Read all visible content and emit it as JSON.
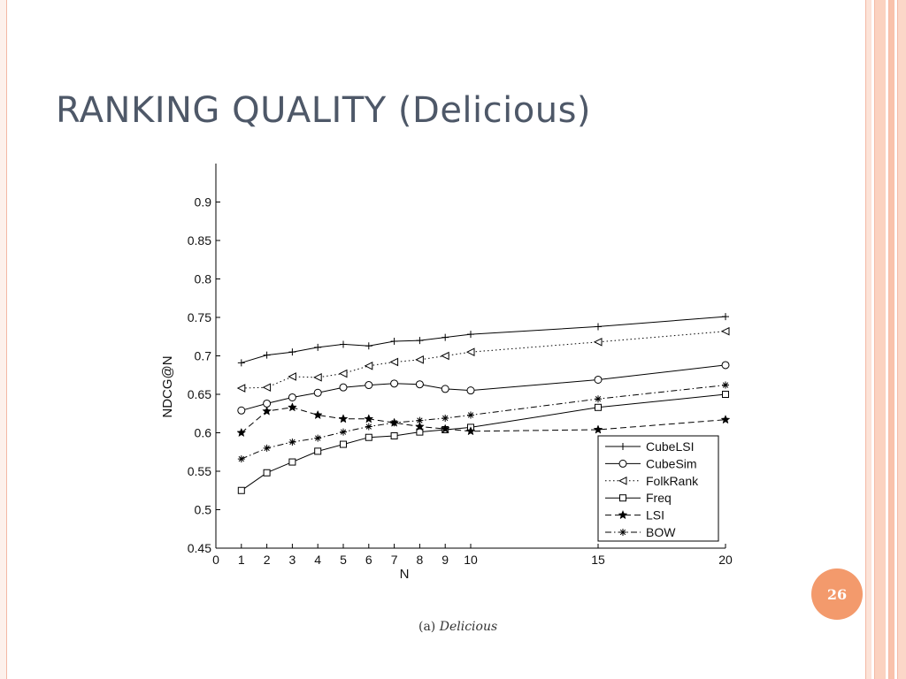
{
  "slide": {
    "title": "RANKING QUALITY (Delicious)",
    "page_number": "26",
    "caption_prefix": "(a)",
    "caption_italic": "Delicious"
  },
  "colors": {
    "title": "#4e5868",
    "accent": "#f39a6c",
    "frame": "#f4b9a5"
  },
  "chart_data": {
    "type": "line",
    "xlabel": "N",
    "ylabel": "NDCG@N",
    "x": [
      1,
      2,
      3,
      4,
      5,
      6,
      7,
      8,
      9,
      10,
      15,
      20
    ],
    "xlim": [
      0,
      20
    ],
    "ylim": [
      0.45,
      0.95
    ],
    "xticks": [
      0,
      1,
      2,
      3,
      4,
      5,
      6,
      7,
      8,
      9,
      10,
      15,
      20
    ],
    "yticks": [
      0.45,
      0.5,
      0.55,
      0.6,
      0.65,
      0.7,
      0.75,
      0.8,
      0.85,
      0.9
    ],
    "ytick_labels": [
      "0.45",
      "0.5",
      "0.55",
      "0.6",
      "0.65",
      "0.7",
      "0.75",
      "0.8",
      "0.85",
      "0.9"
    ],
    "grid": false,
    "legend_position": "bottom-right",
    "series": [
      {
        "name": "CubeLSI",
        "marker": "plus",
        "dash": "solid",
        "values": [
          0.691,
          0.701,
          0.705,
          0.711,
          0.715,
          0.713,
          0.719,
          0.72,
          0.724,
          0.728,
          0.738,
          0.751
        ]
      },
      {
        "name": "CubeSim",
        "marker": "circle",
        "dash": "solid",
        "values": [
          0.629,
          0.638,
          0.646,
          0.652,
          0.659,
          0.662,
          0.664,
          0.663,
          0.657,
          0.655,
          0.669,
          0.688
        ]
      },
      {
        "name": "FolkRank",
        "marker": "triangle-left",
        "dash": "dotted",
        "values": [
          0.658,
          0.659,
          0.673,
          0.672,
          0.677,
          0.687,
          0.692,
          0.695,
          0.7,
          0.705,
          0.718,
          0.732
        ]
      },
      {
        "name": "Freq",
        "marker": "square",
        "dash": "solid",
        "values": [
          0.525,
          0.548,
          0.562,
          0.576,
          0.585,
          0.594,
          0.596,
          0.601,
          0.604,
          0.607,
          0.633,
          0.65
        ]
      },
      {
        "name": "LSI",
        "marker": "star",
        "dash": "dashed",
        "values": [
          0.6,
          0.628,
          0.633,
          0.623,
          0.618,
          0.618,
          0.613,
          0.608,
          0.605,
          0.602,
          0.604,
          0.617
        ]
      },
      {
        "name": "BOW",
        "marker": "asterisk",
        "dash": "dashdot",
        "values": [
          0.566,
          0.58,
          0.588,
          0.593,
          0.601,
          0.608,
          0.613,
          0.616,
          0.619,
          0.623,
          0.644,
          0.662
        ]
      }
    ]
  }
}
